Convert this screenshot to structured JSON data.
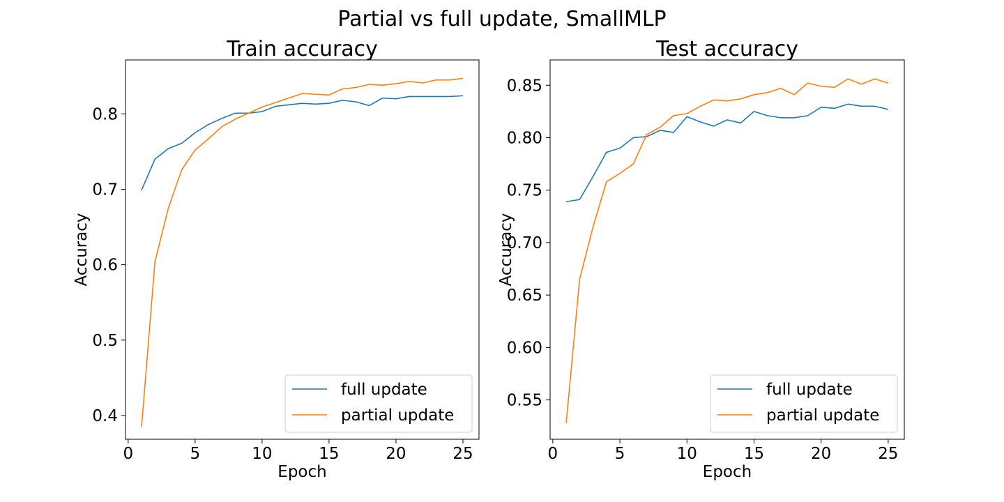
{
  "figure": {
    "suptitle": "Partial vs full update, SmallMLP"
  },
  "chart_data": [
    {
      "type": "line",
      "title": "Train accuracy",
      "xlabel": "Epoch",
      "ylabel": "Accuracy",
      "xlim": [
        -0.2,
        26.2
      ],
      "ylim": [
        0.3685,
        0.8715
      ],
      "xticks": [
        0,
        5,
        10,
        15,
        20,
        25
      ],
      "yticks": [
        0.4,
        0.5,
        0.6,
        0.7,
        0.8
      ],
      "ytick_labels": [
        "0.4",
        "0.5",
        "0.6",
        "0.7",
        "0.8"
      ],
      "grid": false,
      "legend_position": "lower-right",
      "x": [
        1,
        2,
        3,
        4,
        5,
        6,
        7,
        8,
        9,
        10,
        11,
        12,
        13,
        14,
        15,
        16,
        17,
        18,
        19,
        20,
        21,
        22,
        23,
        24,
        25
      ],
      "series": [
        {
          "name": "full update",
          "color": "#1f77b4",
          "values": [
            0.699,
            0.74,
            0.754,
            0.761,
            0.775,
            0.786,
            0.794,
            0.801,
            0.801,
            0.803,
            0.81,
            0.812,
            0.814,
            0.813,
            0.814,
            0.818,
            0.816,
            0.811,
            0.821,
            0.82,
            0.823,
            0.823,
            0.823,
            0.823,
            0.824
          ]
        },
        {
          "name": "partial update",
          "color": "#ff7f0e",
          "values": [
            0.385,
            0.604,
            0.675,
            0.726,
            0.752,
            0.767,
            0.783,
            0.793,
            0.801,
            0.809,
            0.815,
            0.821,
            0.827,
            0.826,
            0.825,
            0.833,
            0.835,
            0.839,
            0.838,
            0.84,
            0.843,
            0.841,
            0.845,
            0.845,
            0.847
          ]
        }
      ]
    },
    {
      "type": "line",
      "title": "Test accuracy",
      "xlabel": "Epoch",
      "ylabel": "Accuracy",
      "xlim": [
        -0.2,
        26.2
      ],
      "ylim": [
        0.5125,
        0.8741
      ],
      "xticks": [
        0,
        5,
        10,
        15,
        20,
        25
      ],
      "yticks": [
        0.55,
        0.6,
        0.65,
        0.7,
        0.75,
        0.8,
        0.85
      ],
      "ytick_labels": [
        "0.55",
        "0.60",
        "0.65",
        "0.70",
        "0.75",
        "0.80",
        "0.85"
      ],
      "grid": false,
      "legend_position": "lower-right",
      "x": [
        1,
        2,
        3,
        4,
        5,
        6,
        7,
        8,
        9,
        10,
        11,
        12,
        13,
        14,
        15,
        16,
        17,
        18,
        19,
        20,
        21,
        22,
        23,
        24,
        25
      ],
      "series": [
        {
          "name": "full update",
          "color": "#1f77b4",
          "values": [
            0.739,
            0.741,
            0.763,
            0.786,
            0.79,
            0.8,
            0.801,
            0.807,
            0.805,
            0.82,
            0.815,
            0.811,
            0.817,
            0.814,
            0.825,
            0.821,
            0.819,
            0.819,
            0.821,
            0.829,
            0.828,
            0.832,
            0.83,
            0.83,
            0.827
          ]
        },
        {
          "name": "partial update",
          "color": "#ff7f0e",
          "values": [
            0.528,
            0.665,
            0.715,
            0.758,
            0.766,
            0.775,
            0.803,
            0.81,
            0.821,
            0.823,
            0.83,
            0.836,
            0.835,
            0.837,
            0.841,
            0.843,
            0.847,
            0.841,
            0.852,
            0.849,
            0.848,
            0.856,
            0.851,
            0.856,
            0.852
          ]
        }
      ]
    }
  ]
}
